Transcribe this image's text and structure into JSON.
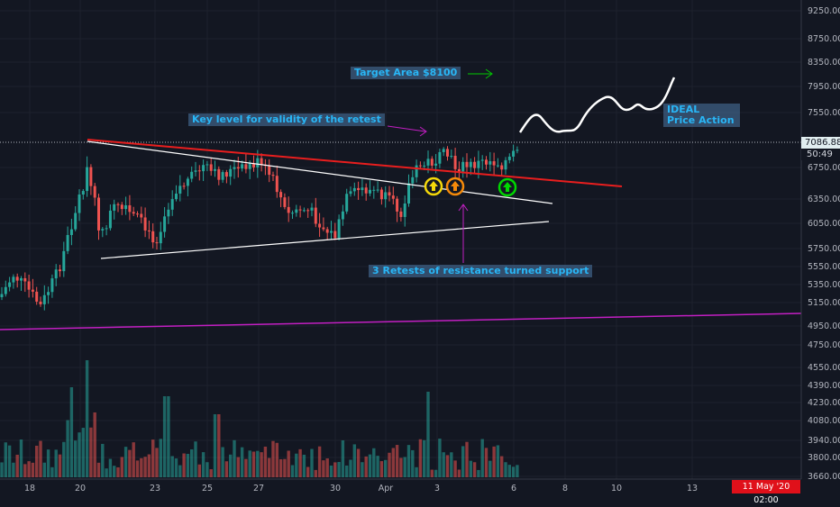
{
  "chart_data": {
    "type": "candlestick",
    "instrument_price_current": "7086.88",
    "countdown": "50:49",
    "y_ticks": [
      "9250.00",
      "8750.00",
      "8350.00",
      "7950.00",
      "7550.00",
      "7086.88",
      "6750.00",
      "6350.00",
      "6050.00",
      "5750.00",
      "5550.00",
      "5350.00",
      "5150.00",
      "4950.00",
      "4750.00",
      "4550.00",
      "4390.00",
      "4230.00",
      "4080.00",
      "3940.00",
      "3800.00",
      "3660.00"
    ],
    "x_ticks": [
      "18",
      "20",
      "23",
      "25",
      "27",
      "30",
      "Apr",
      "3",
      "6",
      "8",
      "10",
      "13"
    ],
    "date_label": "11 May '20   02:00",
    "annotations": {
      "target": "Target Area $8100",
      "key_level": "Key level for validity of the retest",
      "ideal": "IDEAL\nPrice Action",
      "retests": "3 Retests of resistance turned support"
    },
    "colors": {
      "up": "#26a69a",
      "down": "#ef5350",
      "resistance": "#e91e1e",
      "triangle": "#ffffff",
      "support_long": "#c21fc2",
      "arrow_green": "#00c800"
    }
  }
}
